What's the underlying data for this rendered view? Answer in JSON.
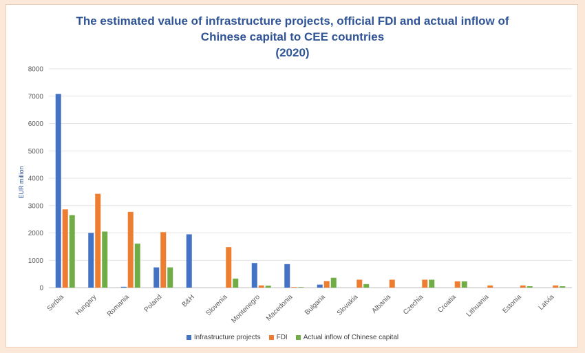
{
  "chart_data": {
    "type": "bar",
    "title_lines": [
      "The estimated value of infrastructure projects, official FDI and actual inflow of",
      "Chinese capital to CEE countries",
      "(2020)"
    ],
    "ylabel": "EUR million",
    "ylim": [
      0,
      8000
    ],
    "yticks": [
      "0",
      "1000",
      "2000",
      "3000",
      "4000",
      "5000",
      "6000",
      "7000",
      "8000"
    ],
    "grid": true,
    "legend_position": "bottom",
    "categories": [
      "Serbia",
      "Hungary",
      "Romania",
      "Poland",
      "B&H",
      "Slovenia",
      "Montenegro",
      "Macedonia",
      "Bulgaria",
      "Slovakia",
      "Albania",
      "Czechia",
      "Croatia",
      "Lithuania",
      "Estonia",
      "Latvia"
    ],
    "series": [
      {
        "name": "Infrastructure projects",
        "color": "#4472c4",
        "values": [
          7080,
          2000,
          30,
          740,
          1950,
          0,
          900,
          860,
          110,
          0,
          0,
          0,
          0,
          0,
          0,
          0
        ]
      },
      {
        "name": "FDI",
        "color": "#ed7d31",
        "values": [
          2860,
          3430,
          2770,
          2030,
          0,
          1480,
          80,
          20,
          240,
          290,
          290,
          290,
          230,
          80,
          80,
          80
        ]
      },
      {
        "name": "Actual inflow of Chinese capital",
        "color": "#70ad47",
        "values": [
          2650,
          2050,
          1610,
          740,
          0,
          330,
          70,
          20,
          360,
          130,
          0,
          290,
          230,
          0,
          50,
          50
        ]
      }
    ]
  }
}
